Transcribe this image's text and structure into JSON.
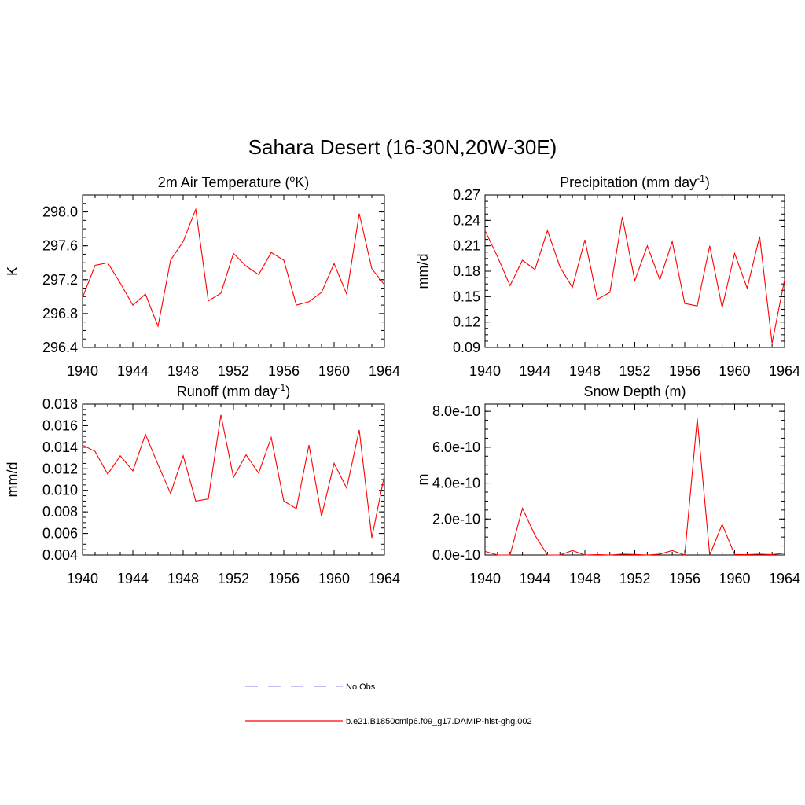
{
  "figure": {
    "title": "Sahara Desert (16-30N,20W-30E)"
  },
  "legend": {
    "entries": [
      {
        "label": "No Obs",
        "color": "#9999ee",
        "dashed": true
      },
      {
        "label": "b.e21.B1850cmip6.f09_g17.DAMIP-hist-ghg.002",
        "color": "#ff0000",
        "dashed": false
      }
    ]
  },
  "chart_data": [
    {
      "type": "line",
      "title": "2m Air Temperature (oK)",
      "title_parts": [
        "2m Air Temperature (",
        "o",
        "K)"
      ],
      "ylabel": "K",
      "xlim": [
        1940,
        1964
      ],
      "ylim": [
        296.4,
        298.2
      ],
      "xticks": [
        "1940",
        "1944",
        "1948",
        "1952",
        "1956",
        "1960",
        "1964"
      ],
      "yticks": [
        "296.4",
        "296.8",
        "297.2",
        "297.6",
        "298.0"
      ],
      "series": [
        {
          "color": "#ff0000",
          "x": [
            1940,
            1941,
            1942,
            1943,
            1944,
            1945,
            1946,
            1947,
            1948,
            1949,
            1950,
            1951,
            1952,
            1953,
            1954,
            1955,
            1956,
            1957,
            1958,
            1959,
            1960,
            1961,
            1962,
            1963,
            1964
          ],
          "values": [
            296.99,
            297.37,
            297.4,
            297.16,
            296.9,
            297.03,
            296.65,
            297.43,
            297.65,
            298.03,
            296.95,
            297.04,
            297.51,
            297.36,
            297.26,
            297.52,
            297.43,
            296.9,
            296.94,
            297.05,
            297.39,
            297.03,
            297.98,
            297.33,
            297.14
          ]
        }
      ]
    },
    {
      "type": "line",
      "title": "Precipitation (mm day-1)",
      "title_parts": [
        "Precipitation (mm day",
        "-1",
        ")"
      ],
      "ylabel": "mm/d",
      "xlim": [
        1940,
        1964
      ],
      "ylim": [
        0.09,
        0.27
      ],
      "xticks": [
        "1940",
        "1944",
        "1948",
        "1952",
        "1956",
        "1960",
        "1964"
      ],
      "yticks": [
        "0.09",
        "0.12",
        "0.15",
        "0.18",
        "0.21",
        "0.24",
        "0.27"
      ],
      "series": [
        {
          "color": "#ff0000",
          "x": [
            1940,
            1941,
            1942,
            1943,
            1944,
            1945,
            1946,
            1947,
            1948,
            1949,
            1950,
            1951,
            1952,
            1953,
            1954,
            1955,
            1956,
            1957,
            1958,
            1959,
            1960,
            1961,
            1962,
            1963,
            1964
          ],
          "values": [
            0.228,
            0.197,
            0.163,
            0.193,
            0.182,
            0.228,
            0.185,
            0.161,
            0.217,
            0.147,
            0.155,
            0.244,
            0.169,
            0.21,
            0.17,
            0.215,
            0.142,
            0.139,
            0.21,
            0.137,
            0.201,
            0.16,
            0.221,
            0.095,
            0.17
          ]
        }
      ]
    },
    {
      "type": "line",
      "title": "Runoff (mm day-1)",
      "title_parts": [
        "Runoff (mm day",
        "-1",
        ")"
      ],
      "ylabel": "mm/d",
      "xlim": [
        1940,
        1964
      ],
      "ylim": [
        0.004,
        0.018
      ],
      "xticks": [
        "1940",
        "1944",
        "1948",
        "1952",
        "1956",
        "1960",
        "1964"
      ],
      "yticks": [
        "0.004",
        "0.006",
        "0.008",
        "0.010",
        "0.012",
        "0.014",
        "0.016",
        "0.018"
      ],
      "series": [
        {
          "color": "#ff0000",
          "x": [
            1940,
            1941,
            1942,
            1943,
            1944,
            1945,
            1946,
            1947,
            1948,
            1949,
            1950,
            1951,
            1952,
            1953,
            1954,
            1955,
            1956,
            1957,
            1958,
            1959,
            1960,
            1961,
            1962,
            1963,
            1964
          ],
          "values": [
            0.0142,
            0.0136,
            0.0115,
            0.0132,
            0.0118,
            0.0152,
            0.0124,
            0.0097,
            0.0132,
            0.009,
            0.0092,
            0.017,
            0.0112,
            0.0133,
            0.0116,
            0.0149,
            0.009,
            0.0083,
            0.0142,
            0.0076,
            0.0125,
            0.0102,
            0.0156,
            0.0056,
            0.0114
          ]
        }
      ]
    },
    {
      "type": "line",
      "title": "Snow Depth (m)",
      "title_parts": [
        "Snow Depth (m)"
      ],
      "ylabel": "m",
      "xlim": [
        1940,
        1964
      ],
      "ylim": [
        0,
        8.4e-10
      ],
      "xticks": [
        "1940",
        "1944",
        "1948",
        "1952",
        "1956",
        "1960",
        "1964"
      ],
      "yticks": [
        "0.0e-10",
        "2.0e-10",
        "4.0e-10",
        "6.0e-10",
        "8.0e-10"
      ],
      "series": [
        {
          "color": "#ff0000",
          "x": [
            1940,
            1941,
            1942,
            1943,
            1944,
            1945,
            1946,
            1947,
            1948,
            1949,
            1950,
            1951,
            1952,
            1953,
            1954,
            1955,
            1956,
            1957,
            1958,
            1959,
            1960,
            1961,
            1962,
            1963,
            1964
          ],
          "values": [
            2e-11,
            0.0,
            0.0,
            2.6e-10,
            1.1e-10,
            0.0,
            0.0,
            2.5e-11,
            0.0,
            2e-12,
            0.0,
            5e-12,
            3e-12,
            0.0,
            5e-12,
            2.5e-11,
            0.0,
            7.6e-10,
            0.0,
            1.7e-10,
            3e-12,
            2e-12,
            5e-12,
            2e-12,
            1e-11
          ]
        }
      ]
    }
  ]
}
